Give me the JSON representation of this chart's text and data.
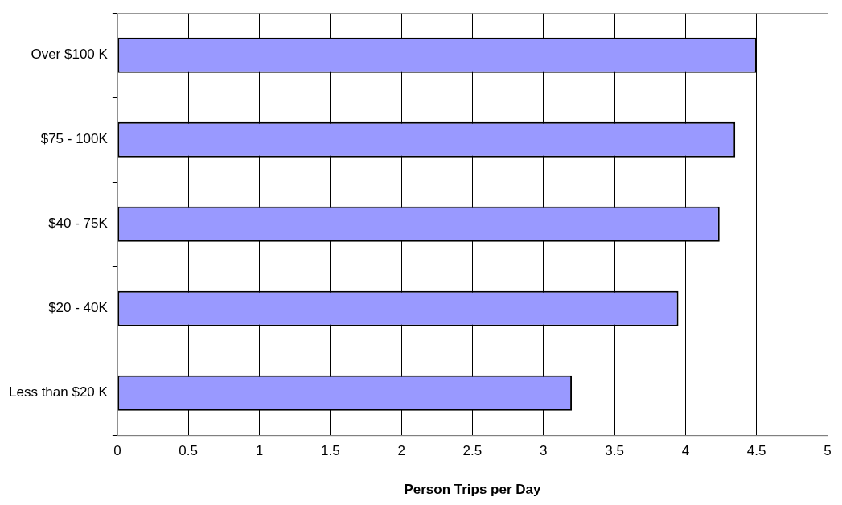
{
  "chart_data": {
    "type": "bar",
    "orientation": "horizontal",
    "categories": [
      "Over $100 K",
      "$75 - 100K",
      "$40 - 75K",
      "$20 - 40K",
      "Less than $20 K"
    ],
    "values": [
      4.5,
      4.35,
      4.24,
      3.95,
      3.2
    ],
    "color": "#9999ff",
    "xlabel": "Person Trips per Day",
    "xlim": [
      0,
      5
    ],
    "xticks": [
      0,
      0.5,
      1,
      1.5,
      2,
      2.5,
      3,
      3.5,
      4,
      4.5,
      5
    ],
    "grid": "x",
    "legend": false
  }
}
